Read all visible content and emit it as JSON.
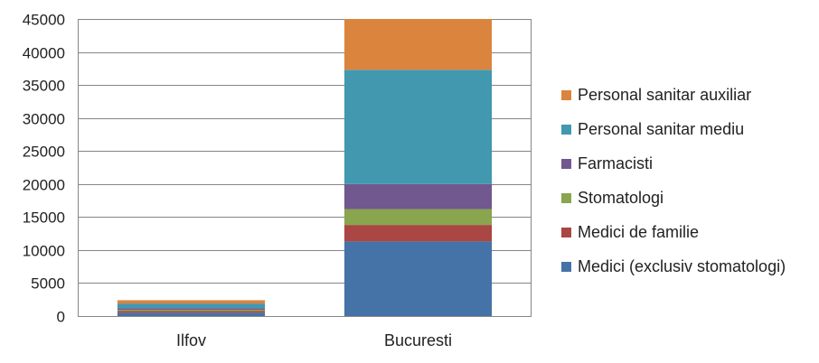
{
  "chart_data": {
    "type": "bar",
    "stacked": true,
    "categories": [
      "Ilfov",
      "Bucuresti"
    ],
    "series": [
      {
        "name": "Medici (exclusiv stomatologi)",
        "values": [
          500,
          11300
        ],
        "color": "#4572A7"
      },
      {
        "name": "Medici de familie",
        "values": [
          250,
          2500
        ],
        "color": "#AA4643"
      },
      {
        "name": "Stomatologi",
        "values": [
          200,
          2400
        ],
        "color": "#89A54E"
      },
      {
        "name": "Farmacisti",
        "values": [
          250,
          3800
        ],
        "color": "#71588F"
      },
      {
        "name": "Personal sanitar mediu",
        "values": [
          700,
          17300
        ],
        "color": "#4198AF"
      },
      {
        "name": "Personal sanitar auxiliar",
        "values": [
          500,
          7700
        ],
        "color": "#DB843D"
      }
    ],
    "ylim": [
      0,
      45000
    ],
    "yticks": [
      "0",
      "5000",
      "10000",
      "15000",
      "20000",
      "25000",
      "30000",
      "35000",
      "40000",
      "45000"
    ],
    "grid": true,
    "legend": "right",
    "title": "",
    "xlabel": "",
    "ylabel": ""
  }
}
